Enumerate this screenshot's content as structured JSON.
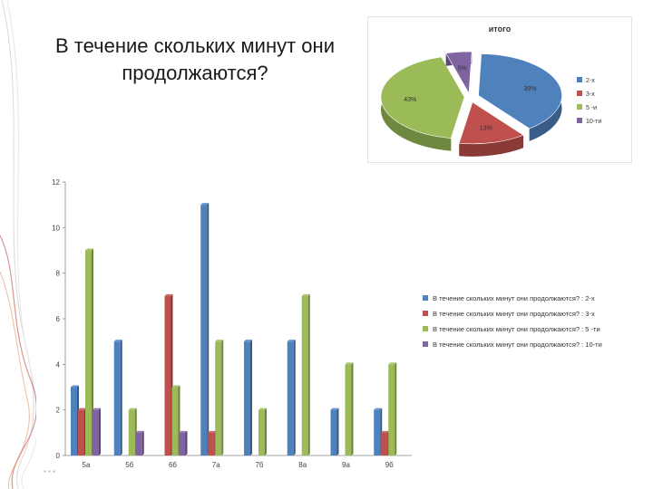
{
  "slide": {
    "title": "В течение скольких минут они продолжаются?"
  },
  "chart_data": [
    {
      "type": "pie",
      "title": "итого",
      "labels": [
        "2-х",
        "3-х",
        "5 -и",
        "10-ти"
      ],
      "values": [
        39,
        13,
        43,
        5
      ],
      "value_labels": [
        "39%",
        "13%",
        "43%",
        "5%"
      ],
      "colors": [
        "#4f81bd",
        "#c0504d",
        "#9bbb59",
        "#8064a2"
      ],
      "legend": "right"
    },
    {
      "type": "bar",
      "categories": [
        "5а",
        "5б",
        "6б",
        "7а",
        "7б",
        "8а",
        "9а",
        "9б"
      ],
      "ylim": [
        0,
        12
      ],
      "yticks": [
        "0",
        "2",
        "4",
        "6",
        "8",
        "10",
        "12"
      ],
      "grid": false,
      "legend": "right",
      "series": [
        {
          "name": "В течение скольких минут они продолжаются? : 2-х",
          "color": "#4f81bd",
          "values": [
            3,
            5,
            0,
            11,
            5,
            5,
            2,
            2
          ]
        },
        {
          "name": "В течение скольких минут они продолжаются? : 3-х",
          "color": "#c0504d",
          "values": [
            2,
            0,
            7,
            1,
            0,
            0,
            0,
            1
          ]
        },
        {
          "name": "В течение скольких минут они продолжаются? : 5 -ти",
          "color": "#9bbb59",
          "values": [
            9,
            2,
            3,
            5,
            2,
            7,
            4,
            4
          ]
        },
        {
          "name": "В течение скольких минут они продолжаются? : 10-ти",
          "color": "#8064a2",
          "values": [
            2,
            1,
            1,
            0,
            0,
            0,
            0,
            0
          ]
        }
      ]
    }
  ]
}
